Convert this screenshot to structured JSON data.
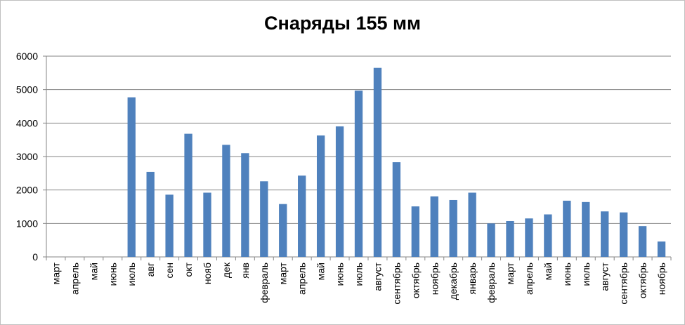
{
  "chart_data": {
    "type": "bar",
    "title": "Снаряды 155 мм",
    "xlabel": "",
    "ylabel": "",
    "ylim": [
      0,
      6000
    ],
    "yticks": [
      0,
      1000,
      2000,
      3000,
      4000,
      5000,
      6000
    ],
    "grid": true,
    "legend": "none",
    "bar_color": "#4f81bd",
    "categories": [
      "март",
      "апрель",
      "май",
      "июнь",
      "июль",
      "авг",
      "сен",
      "окт",
      "нояб",
      "дек",
      "янв",
      "февраль",
      "март",
      "апрель",
      "май",
      "июнь",
      "июль",
      "август",
      "сентябрь",
      "октябрь",
      "ноябрь",
      "декабрь",
      "январь",
      "февраль",
      "март",
      "апрель",
      "май",
      "июнь",
      "июль",
      "август",
      "сентябрь",
      "октябрь",
      "ноябрь"
    ],
    "values": [
      0,
      0,
      0,
      0,
      4770,
      2540,
      1860,
      3680,
      1920,
      3350,
      3100,
      2260,
      1580,
      2430,
      3630,
      3900,
      4970,
      5650,
      2830,
      1510,
      1810,
      1700,
      1920,
      1000,
      1070,
      1150,
      1270,
      1680,
      1640,
      1360,
      1330,
      920,
      460
    ]
  }
}
